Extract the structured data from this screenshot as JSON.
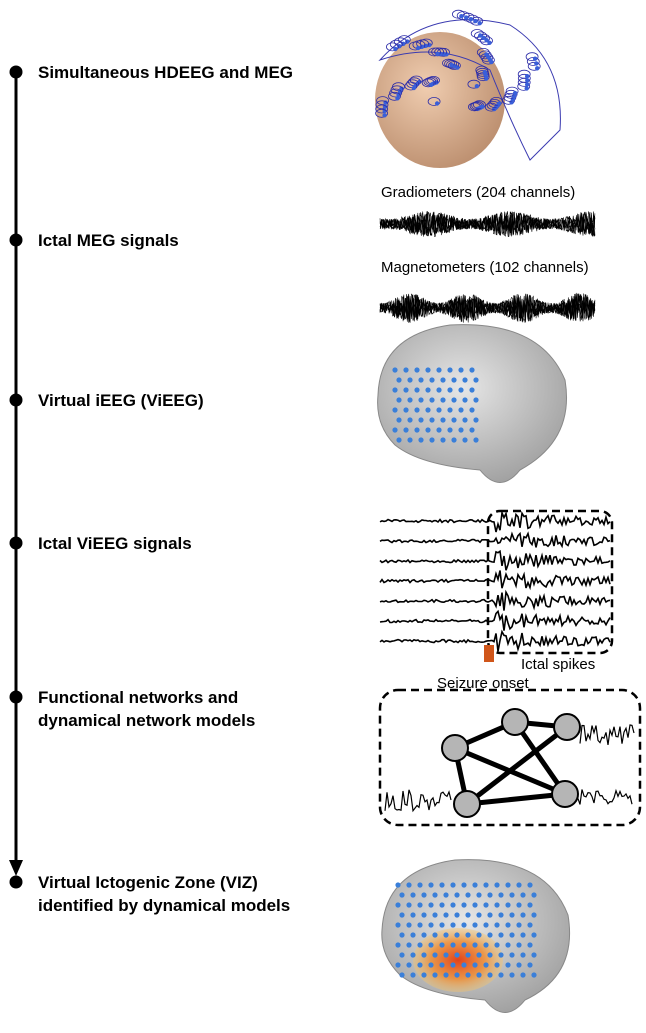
{
  "steps": [
    {
      "lines": [
        "Simultaneous HDEEG and MEG"
      ]
    },
    {
      "lines": [
        "Ictal MEG signals"
      ]
    },
    {
      "lines": [
        "Virtual iEEG (ViEEG)"
      ]
    },
    {
      "lines": [
        "Ictal ViEEG signals"
      ]
    },
    {
      "lines": [
        "Functional networks and",
        "dynamical network models"
      ]
    },
    {
      "lines": [
        "Virtual Ictogenic Zone (VIZ)",
        "identified by dynamical models"
      ]
    }
  ],
  "annotations": {
    "gradiometers": "Gradiometers (204 channels)",
    "magnetometers": "Magnetometers (102 channels)",
    "ictal_spikes": "Ictal spikes",
    "seizure_onset": "Seizure onset"
  }
}
